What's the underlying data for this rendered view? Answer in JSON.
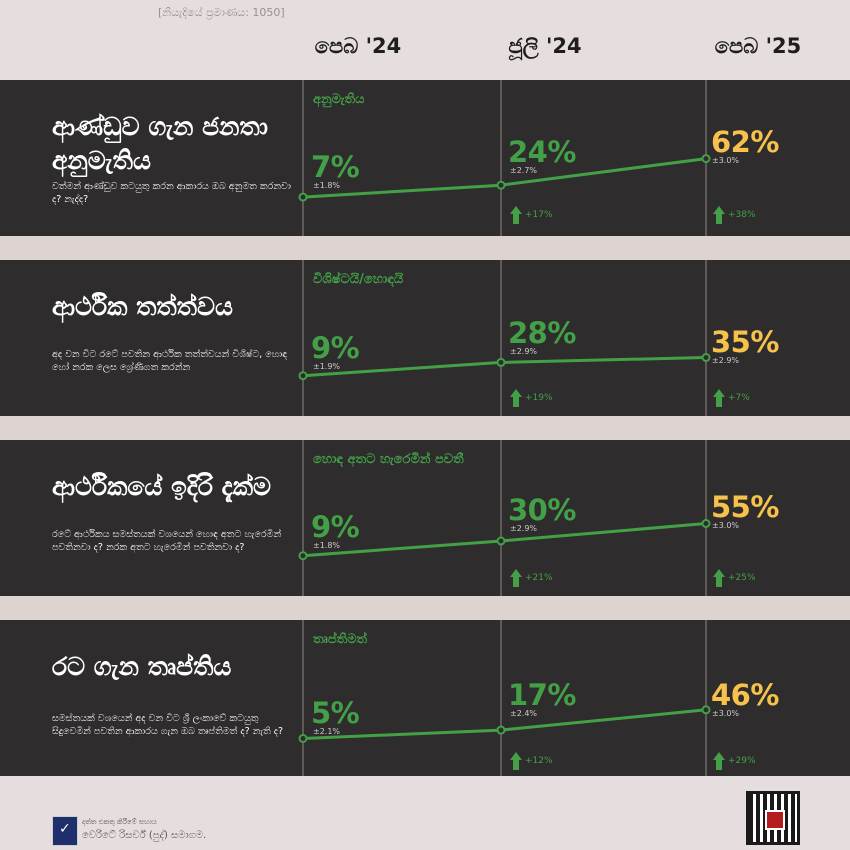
{
  "sample_note": "[නියැදියේ ප්‍රමාණය: 1050]",
  "periods": [
    "පෙබ '24",
    "ජූලි '24",
    "පෙබ '25"
  ],
  "colors": {
    "panel": "#2e2c2c",
    "accent_green": "#43a047",
    "latest_yellow": "#f6c24b",
    "background": "#e6dede"
  },
  "panels": [
    {
      "title": "ආණ්ඩුව ගැන ජනතා අනුමැතිය",
      "question": "වත්මන් ආණ්ඩුව කටයුතු කරන ආකාරය ඔබ අනුමත කරනවා ද? නැද්ද?",
      "metric_label": "අනුමැතිය",
      "values": [
        "7%",
        "24%",
        "62%"
      ],
      "moe": [
        "±1.8%",
        "±2.7%",
        "±3.0%"
      ],
      "deltas": [
        "+17%",
        "+38%"
      ]
    },
    {
      "title": "ආර්ථික තත්ත්වය",
      "question": "අද වන විට රටේ පවතින ආර්ථික තත්ත්වයන් විශිෂ්ට, හොඳ හෝ නරක ලෙස ශ්‍රේණිගත කරන්න",
      "metric_label": "විශිෂ්ටයි/හොඳයි",
      "values": [
        "9%",
        "28%",
        "35%"
      ],
      "moe": [
        "±1.9%",
        "±2.9%",
        "±2.9%"
      ],
      "deltas": [
        "+19%",
        "+7%"
      ]
    },
    {
      "title": "ආර්ථිකයේ ඉදිරි දැක්ම",
      "question": "රටේ ආර්ථිකය සමස්තයක් වශයෙන් හොඳ අතට හැරෙමින් පවතිනවා ද? නරක අතට හැරෙමින් පවතිනවා ද?",
      "metric_label": "හොඳ අතට හැරෙමින් පවතී",
      "values": [
        "9%",
        "30%",
        "55%"
      ],
      "moe": [
        "±1.8%",
        "±2.9%",
        "±3.0%"
      ],
      "deltas": [
        "+21%",
        "+25%"
      ]
    },
    {
      "title": "රට ගැන තෘප්තිය",
      "question": "සමස්තයක් වශයෙන් අද වන විට ශ්‍රී ලංකාවේ කටයුතු සිදුවෙමින් පවතින ආකාරය ගැන ඔබ තෘප්තිමත් ද? නැති ද?",
      "metric_label": "තෘප්තිමත්",
      "values": [
        "5%",
        "17%",
        "46%"
      ],
      "moe": [
        "±2.1%",
        "±2.4%",
        "±3.0%"
      ],
      "deltas": [
        "+12%",
        "+29%"
      ]
    }
  ],
  "chart_data": [
    {
      "type": "line",
      "title": "ආණ්ඩුව ගැන ජනතා අනුමැතිය",
      "categories": [
        "පෙබ '24",
        "ජූලි '24",
        "පෙබ '25"
      ],
      "series": [
        {
          "name": "අනුමැතිය",
          "values": [
            7,
            24,
            62
          ]
        }
      ],
      "ylim": [
        0,
        100
      ]
    },
    {
      "type": "line",
      "title": "ආර්ථික තත්ත්වය",
      "categories": [
        "පෙබ '24",
        "ජූලි '24",
        "පෙබ '25"
      ],
      "series": [
        {
          "name": "විශිෂ්ටයි/හොඳයි",
          "values": [
            9,
            28,
            35
          ]
        }
      ],
      "ylim": [
        0,
        100
      ]
    },
    {
      "type": "line",
      "title": "ආර්ථිකයේ ඉදිරි දැක්ම",
      "categories": [
        "පෙබ '24",
        "ජූලි '24",
        "පෙබ '25"
      ],
      "series": [
        {
          "name": "හොඳ අතට හැරෙමින් පවතී",
          "values": [
            9,
            30,
            55
          ]
        }
      ],
      "ylim": [
        0,
        100
      ]
    },
    {
      "type": "line",
      "title": "රට ගැන තෘප්තිය",
      "categories": [
        "පෙබ '24",
        "ජූලි '24",
        "පෙබ '25"
      ],
      "series": [
        {
          "name": "තෘප්තිමත්",
          "values": [
            5,
            17,
            46
          ]
        }
      ],
      "ylim": [
        0,
        100
      ]
    }
  ],
  "footer": {
    "org_line1": "දත්ත එකතු කිරීමේ සහාය",
    "org_line2": "වෙරිටේ රිසර්ච් (පුද්) සමාගම."
  }
}
